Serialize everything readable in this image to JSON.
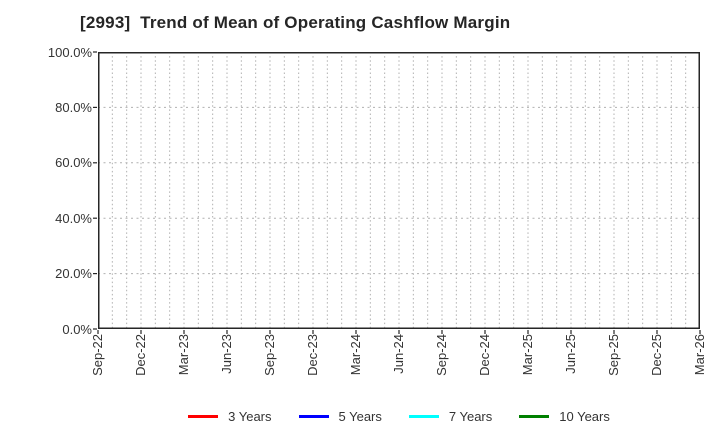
{
  "title": "[2993]  Trend of Mean of Operating Cashflow Margin",
  "colors": {
    "background": "#ffffff",
    "axis_frame": "#262626",
    "grid": "#b0b0b0",
    "text": "#333333",
    "series_red": "#ff0000",
    "series_blue": "#0000ff",
    "series_cyan": "#00ffff",
    "series_green": "#008000"
  },
  "legend": {
    "items": [
      {
        "label": "3 Years",
        "color": "#ff0000"
      },
      {
        "label": "5 Years",
        "color": "#0000ff"
      },
      {
        "label": "7 Years",
        "color": "#00ffff"
      },
      {
        "label": "10 Years",
        "color": "#008000"
      }
    ]
  },
  "chart_data": {
    "type": "line",
    "title": "[2993]  Trend of Mean of Operating Cashflow Margin",
    "xlabel": "",
    "ylabel": "",
    "ylim": [
      0,
      100
    ],
    "y_tick_labels": [
      "100.0%",
      "80.0%",
      "60.0%",
      "40.0%",
      "20.0%",
      "0.0%"
    ],
    "categories": [
      "Sep-22",
      "Dec-22",
      "Mar-23",
      "Jun-23",
      "Sep-23",
      "Dec-23",
      "Mar-24",
      "Jun-24",
      "Sep-24",
      "Dec-24",
      "Mar-25",
      "Jun-25",
      "Sep-25",
      "Dec-25",
      "Mar-26"
    ],
    "grid": "on",
    "grid_minor_x_per_quarter": 3,
    "legend_position": "bottom",
    "series": [
      {
        "name": "3 Years",
        "color": "#ff0000",
        "values": []
      },
      {
        "name": "5 Years",
        "color": "#0000ff",
        "values": []
      },
      {
        "name": "7 Years",
        "color": "#00ffff",
        "values": []
      },
      {
        "name": "10 Years",
        "color": "#008000",
        "values": []
      }
    ]
  }
}
